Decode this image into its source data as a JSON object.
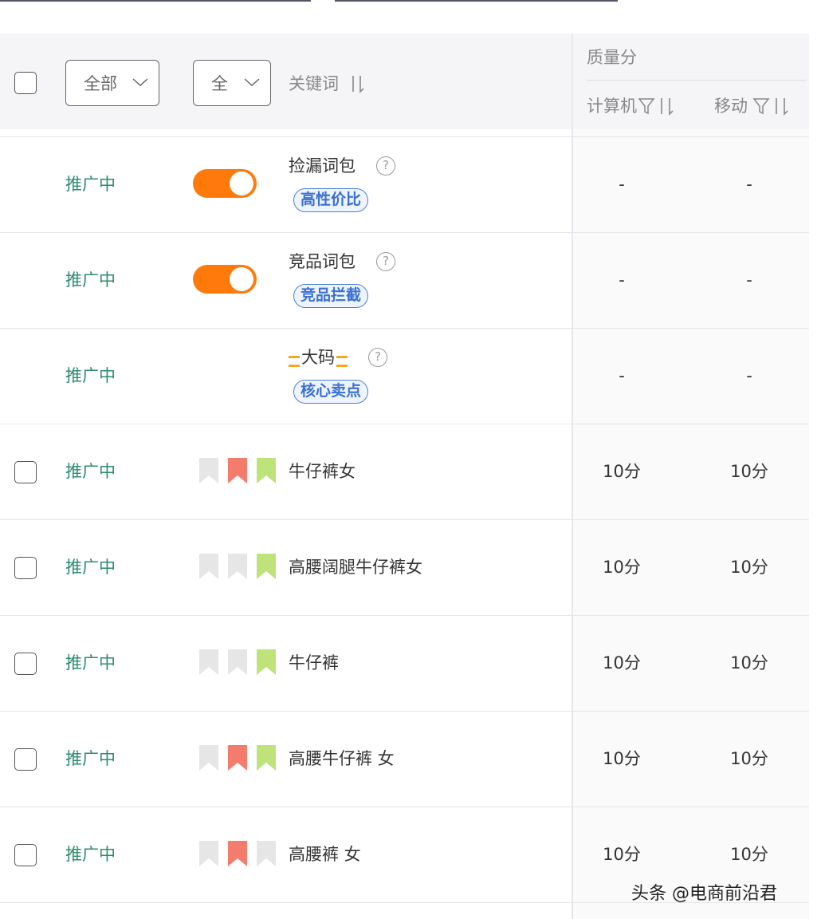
{
  "header": {
    "status_filter": "全部",
    "type_filter": "全",
    "keyword": "关键词",
    "quality_score": "质量分",
    "pc": "计算机",
    "mobile": "移动"
  },
  "rows": [
    {
      "status": "推广中",
      "switch": true,
      "keyword": "捡漏词包",
      "tag": "高性价比",
      "pc": "-",
      "mobile": "-"
    },
    {
      "status": "推广中",
      "switch": true,
      "keyword": "竞品词包",
      "tag": "竞品拦截",
      "pc": "-",
      "mobile": "-"
    },
    {
      "status": "推广中",
      "switch": false,
      "keyword_decoration": true,
      "keyword": "大码",
      "tag": "核心卖点",
      "pc": "-",
      "mobile": "-"
    },
    {
      "status": "推广中",
      "checkbox": true,
      "flags": [
        "#e6e6e6",
        "#f47c6c",
        "#bde37a"
      ],
      "keyword": "牛仔裤女",
      "pc": "10分",
      "mobile": "10分"
    },
    {
      "status": "推广中",
      "checkbox": true,
      "flags": [
        "#e6e6e6",
        "#e6e6e6",
        "#bde37a"
      ],
      "keyword": "高腰阔腿牛仔裤女",
      "pc": "10分",
      "mobile": "10分"
    },
    {
      "status": "推广中",
      "checkbox": true,
      "flags": [
        "#e6e6e6",
        "#e6e6e6",
        "#bde37a"
      ],
      "keyword": "牛仔裤",
      "pc": "10分",
      "mobile": "10分"
    },
    {
      "status": "推广中",
      "checkbox": true,
      "flags": [
        "#e6e6e6",
        "#f47c6c",
        "#bde37a"
      ],
      "keyword": "高腰牛仔裤 女",
      "pc": "10分",
      "mobile": "10分"
    },
    {
      "status": "推广中",
      "checkbox": true,
      "flags": [
        "#e6e6e6",
        "#f47c6c",
        "#e6e6e6"
      ],
      "keyword": "高腰裤 女",
      "pc": "10分",
      "mobile": "10分"
    }
  ],
  "watermark": "头条 @电商前沿君"
}
